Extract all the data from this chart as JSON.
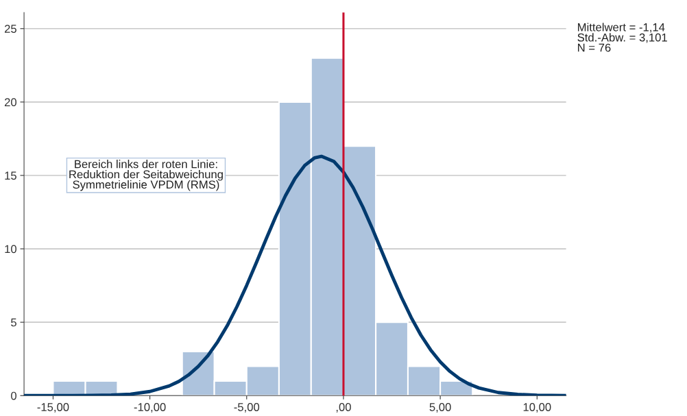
{
  "chart_data": {
    "type": "histogram",
    "bins": [
      -15,
      -13.33,
      -11.67,
      -10,
      -8.33,
      -6.67,
      -5,
      -3.33,
      -1.67,
      0,
      1.67,
      3.33,
      5,
      6.67
    ],
    "values": [
      1,
      1,
      0,
      0,
      3,
      1,
      2,
      20,
      23,
      17,
      5,
      2,
      1
    ],
    "color": "#adc3dd",
    "series": [
      {
        "type": "line",
        "color": "#003a6e",
        "x": [
          -16.5,
          -14,
          -13,
          -12,
          -11,
          -10,
          -9,
          -8.5,
          -8,
          -7.5,
          -7,
          -6.5,
          -6,
          -5.5,
          -5,
          -4.5,
          -4,
          -3.5,
          -3,
          -2.5,
          -2,
          -1.5,
          -1.14,
          -0.5,
          0,
          0.5,
          1,
          1.5,
          2,
          2.5,
          3,
          3.5,
          4,
          4.5,
          5,
          5.5,
          6,
          6.5,
          7,
          8,
          9,
          10,
          11.5
        ],
        "values": [
          0,
          0,
          0.01,
          0.04,
          0.1,
          0.28,
          0.66,
          0.97,
          1.41,
          1.99,
          2.73,
          3.66,
          4.77,
          6.07,
          7.51,
          9.06,
          10.65,
          12.2,
          13.61,
          14.8,
          15.68,
          16.19,
          16.3,
          15.96,
          15.23,
          14.17,
          12.85,
          11.35,
          9.76,
          8.18,
          6.69,
          5.32,
          4.12,
          3.12,
          2.3,
          1.65,
          1.15,
          0.78,
          0.52,
          0.21,
          0.08,
          0.03,
          0
        ]
      }
    ],
    "xlim": [
      -16.5,
      11.5
    ],
    "ylim": [
      0,
      26.1
    ],
    "xticks": [
      {
        "value": -15,
        "label": "-15,00"
      },
      {
        "value": -10,
        "label": "-10,00"
      },
      {
        "value": -5,
        "label": "-5,00"
      },
      {
        "value": 0,
        "label": ",00"
      },
      {
        "value": 5,
        "label": "5,00"
      },
      {
        "value": 10,
        "label": "10,00"
      }
    ],
    "yticks": [
      0,
      5,
      10,
      15,
      20,
      25
    ],
    "grid": "y",
    "ref_lines": [
      {
        "axis": "x",
        "value": 0,
        "color": "#c8102e"
      }
    ],
    "annotations": [
      "Mittelwert = -1,14\nStd.-Abw. = 3,101\nN = 76",
      "Bereich links der roten Linie:\nReduktion der Seitabweichung\nSymmetrielinie VPDM (RMS)"
    ]
  }
}
